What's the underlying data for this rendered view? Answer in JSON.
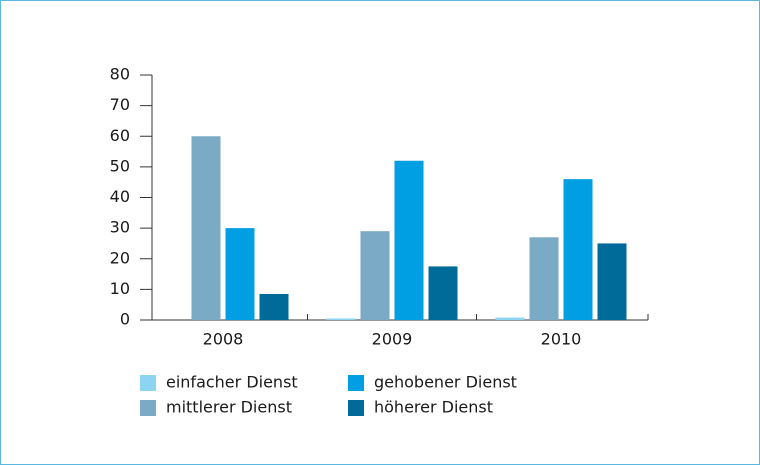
{
  "chart_data": {
    "type": "bar",
    "categories": [
      "2008",
      "2009",
      "2010"
    ],
    "series": [
      {
        "name": "einfacher Dienst",
        "color": "#8dd4f3",
        "values": [
          0,
          0.5,
          0.8
        ]
      },
      {
        "name": "mittlerer Dienst",
        "color": "#7aaac6",
        "values": [
          60,
          29,
          27
        ]
      },
      {
        "name": "gehobener Dienst",
        "color": "#009fe3",
        "values": [
          30,
          52,
          46
        ]
      },
      {
        "name": "höherer Dienst",
        "color": "#006a98",
        "values": [
          8.5,
          17.5,
          25
        ]
      }
    ],
    "ylim": [
      0,
      80
    ],
    "yticks": [
      0,
      10,
      20,
      30,
      40,
      50,
      60,
      70,
      80
    ],
    "grid": false
  }
}
